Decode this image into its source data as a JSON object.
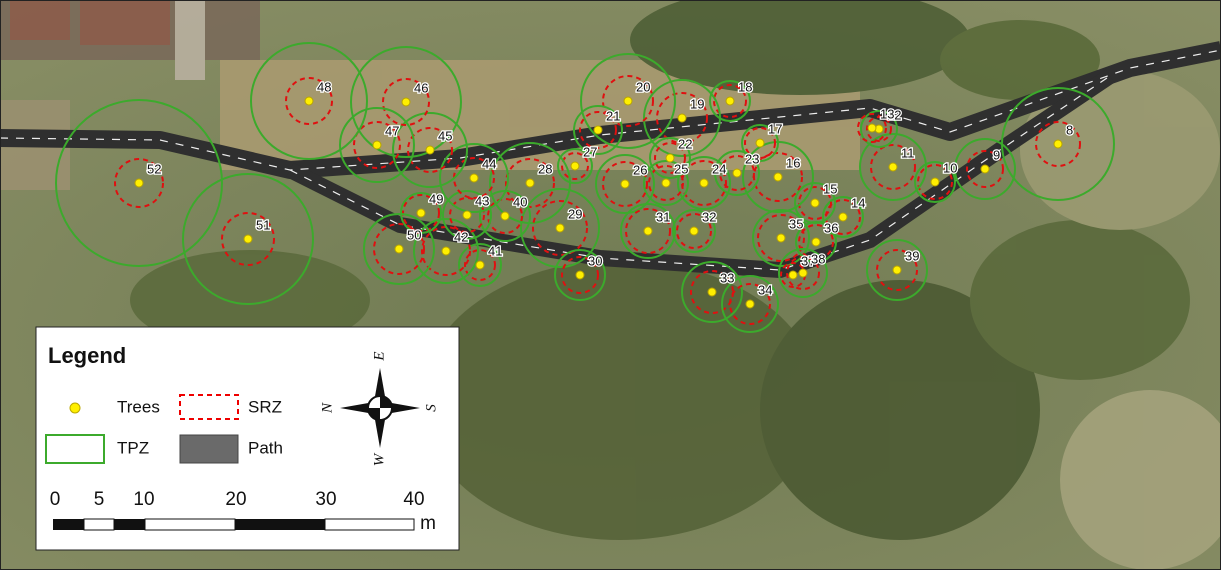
{
  "trees": {
    "labels": [
      "8",
      "9",
      "10",
      "11",
      "12",
      "13",
      "14",
      "15",
      "16",
      "17",
      "18",
      "19",
      "20",
      "21",
      "22",
      "23",
      "24",
      "25",
      "26",
      "27",
      "28",
      "29",
      "30",
      "31",
      "32",
      "33",
      "34",
      "35",
      "36",
      "37",
      "38",
      "39",
      "40",
      "41",
      "42",
      "43",
      "44",
      "45",
      "46",
      "47",
      "48",
      "49",
      "50",
      "51",
      "52"
    ]
  },
  "legend": {
    "title": "Legend",
    "items": [
      "Trees",
      "SRZ",
      "TPZ",
      "Path"
    ]
  },
  "compass": {
    "north": "N",
    "east": "E",
    "south": "S",
    "west": "W"
  },
  "scale": {
    "labels": [
      "0",
      "5",
      "10",
      "20",
      "30",
      "40"
    ],
    "unit": "m"
  }
}
